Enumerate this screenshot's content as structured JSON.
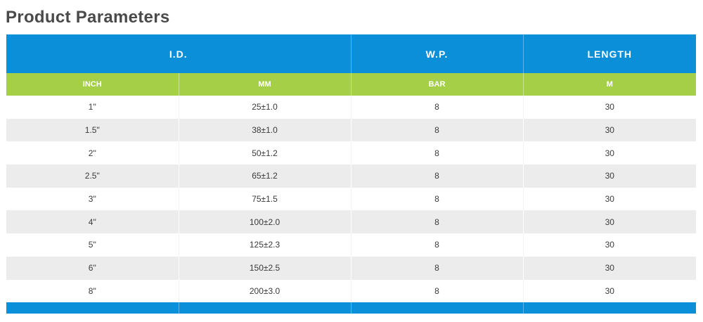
{
  "title": "Product Parameters",
  "table": {
    "group_headers": {
      "id": "I.D.",
      "wp": "W.P.",
      "length": "LENGTH"
    },
    "unit_headers": [
      "INCH",
      "MM",
      "BAR",
      "M"
    ],
    "rows": [
      [
        "1\"",
        "25±1.0",
        "8",
        "30"
      ],
      [
        "1.5\"",
        "38±1.0",
        "8",
        "30"
      ],
      [
        "2\"",
        "50±1.2",
        "8",
        "30"
      ],
      [
        "2.5\"",
        "65±1.2",
        "8",
        "30"
      ],
      [
        "3\"",
        "75±1.5",
        "8",
        "30"
      ],
      [
        "4\"",
        "100±2.0",
        "8",
        "30"
      ],
      [
        "5\"",
        "125±2.3",
        "8",
        "30"
      ],
      [
        "6\"",
        "150±2.5",
        "8",
        "30"
      ],
      [
        "8\"",
        "200±3.0",
        "8",
        "30"
      ]
    ]
  },
  "colors": {
    "header_blue": "#0a8fd8",
    "header_green": "#a5cf47",
    "stripe_gray": "#ececec",
    "title_gray": "#4a4a4a"
  }
}
